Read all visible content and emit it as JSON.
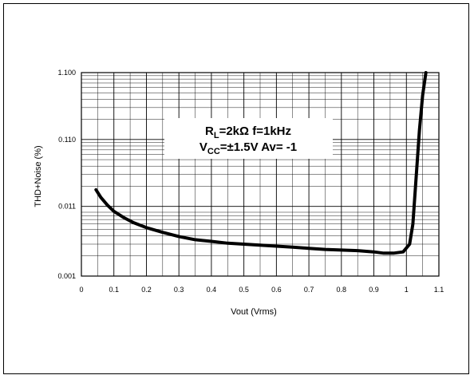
{
  "chart_data": {
    "type": "line",
    "title": "",
    "xlabel": "Vout (Vrms)",
    "ylabel": "THD+Noise (%)",
    "x_scale": "linear",
    "y_scale": "log",
    "xlim": [
      0,
      1.1
    ],
    "ylim": [
      0.001,
      1.1
    ],
    "x_ticks": [
      "0",
      "0.1",
      "0.2",
      "0.3",
      "0.4",
      "0.5",
      "0.6",
      "0.7",
      "0.8",
      "0.9",
      "1",
      "1.1"
    ],
    "y_ticks": [
      {
        "value": 0.001,
        "label": "0.001"
      },
      {
        "value": 0.011,
        "label": "0.011"
      },
      {
        "value": 0.11,
        "label": "0.110"
      },
      {
        "value": 1.1,
        "label": "1.100"
      }
    ],
    "grid": true,
    "annotation": {
      "line1": {
        "r": "R",
        "r_sub": "L",
        "rest": "=2kΩ  f=1kHz"
      },
      "line2": {
        "v": "V",
        "v_sub": "CC",
        "rest": "=±1.5V  Av= -1"
      }
    },
    "series": [
      {
        "color": "#000000",
        "points": [
          [
            0.045,
            0.0195
          ],
          [
            0.06,
            0.015
          ],
          [
            0.08,
            0.0115
          ],
          [
            0.1,
            0.0093
          ],
          [
            0.13,
            0.0075
          ],
          [
            0.16,
            0.0063
          ],
          [
            0.2,
            0.0053
          ],
          [
            0.25,
            0.0045
          ],
          [
            0.3,
            0.0039
          ],
          [
            0.35,
            0.0035
          ],
          [
            0.4,
            0.0033
          ],
          [
            0.45,
            0.0031
          ],
          [
            0.5,
            0.003
          ],
          [
            0.55,
            0.0029
          ],
          [
            0.6,
            0.0028
          ],
          [
            0.65,
            0.0027
          ],
          [
            0.7,
            0.0026
          ],
          [
            0.75,
            0.0025
          ],
          [
            0.8,
            0.00245
          ],
          [
            0.85,
            0.0024
          ],
          [
            0.9,
            0.0023
          ],
          [
            0.93,
            0.0022
          ],
          [
            0.96,
            0.0022
          ],
          [
            0.99,
            0.0023
          ],
          [
            1.01,
            0.003
          ],
          [
            1.02,
            0.006
          ],
          [
            1.03,
            0.03
          ],
          [
            1.04,
            0.15
          ],
          [
            1.05,
            0.5
          ],
          [
            1.06,
            1.1
          ]
        ]
      }
    ]
  }
}
